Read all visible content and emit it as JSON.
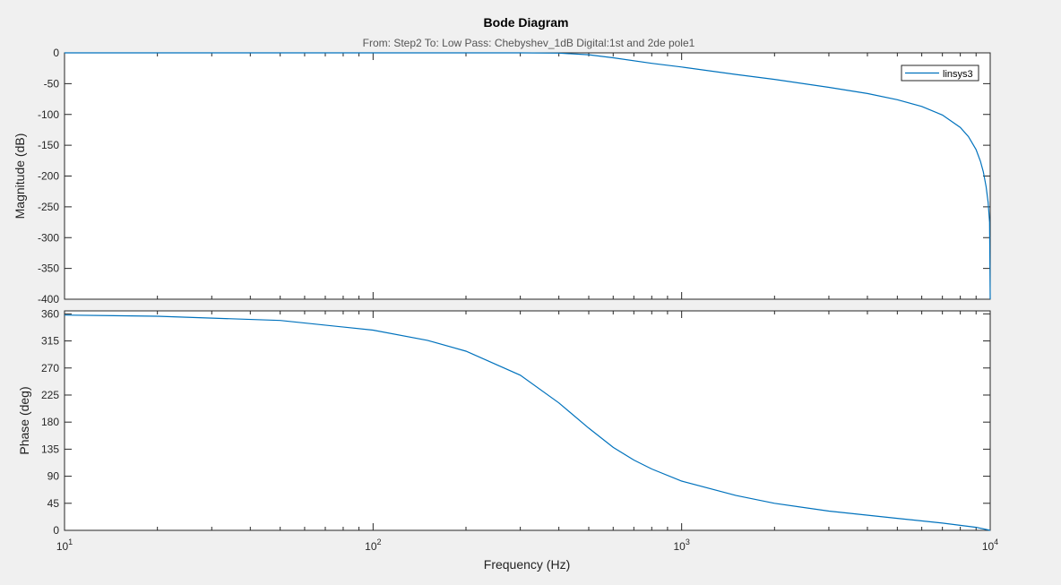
{
  "chart_data": {
    "type": "line",
    "title": "Bode Diagram",
    "subtitle": "From: Step2  To: Low Pass: Chebyshev_1dB Digital:1st and 2de pole1",
    "xlabel": "Frequency  (Hz)",
    "x_scale": "log",
    "xlim": [
      10,
      10000
    ],
    "x_ticks": [
      {
        "value": 10,
        "base": "10",
        "exp": "1"
      },
      {
        "value": 100,
        "base": "10",
        "exp": "2"
      },
      {
        "value": 1000,
        "base": "10",
        "exp": "3"
      },
      {
        "value": 10000,
        "base": "10",
        "exp": "4"
      }
    ],
    "grid": false,
    "legend": {
      "position": "top-right",
      "entries": [
        "linsys3"
      ]
    },
    "line_color": "#0072bd",
    "panels": [
      {
        "name": "magnitude",
        "ylabel": "Magnitude (dB)",
        "ylim": [
          -400,
          0
        ],
        "yticks": [
          0,
          -50,
          -100,
          -150,
          -200,
          -250,
          -300,
          -350,
          -400
        ],
        "series": [
          {
            "name": "linsys3",
            "x": [
              10,
              50,
              100,
              200,
              300,
              400,
              500,
              600,
              800,
              1000,
              1500,
              2000,
              3000,
              4000,
              5000,
              6000,
              7000,
              8000,
              8500,
              9000,
              9300,
              9500,
              9700,
              9850,
              9950,
              10000
            ],
            "y": [
              0,
              0,
              0,
              0,
              0,
              -0.5,
              -3,
              -8,
              -17,
              -23,
              -35,
              -43,
              -56,
              -66,
              -76,
              -87,
              -101,
              -121,
              -136,
              -157,
              -176,
              -193,
              -217,
              -243,
              -275,
              -400
            ]
          }
        ]
      },
      {
        "name": "phase",
        "ylabel": "Phase (deg)",
        "ylim": [
          0,
          365
        ],
        "yticks": [
          0,
          45,
          90,
          135,
          180,
          225,
          270,
          315,
          360
        ],
        "series": [
          {
            "name": "linsys3",
            "x": [
              10,
              20,
              50,
              100,
              150,
              200,
              300,
              400,
              500,
              600,
              700,
              800,
              1000,
              1500,
              2000,
              3000,
              5000,
              7000,
              9000,
              10000
            ],
            "y": [
              358,
              356,
              349,
              333,
              316,
              298,
              258,
              212,
              170,
              138,
              117,
              102,
              82,
              58,
              45,
              32,
              20,
              12,
              5,
              0
            ]
          }
        ]
      }
    ]
  }
}
